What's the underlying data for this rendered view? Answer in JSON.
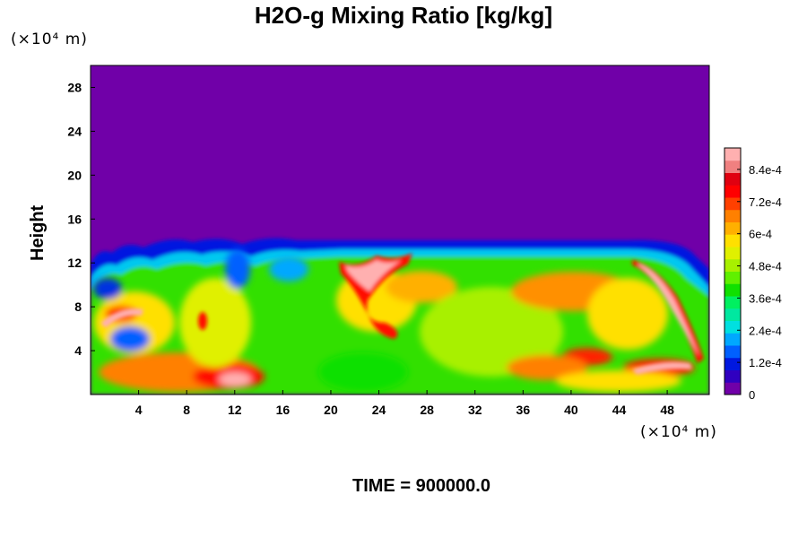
{
  "chart_data": {
    "type": "heatmap",
    "title": "H2O-g Mixing Ratio [kg/kg]",
    "ylabel": "Height",
    "y_unit": "(×10⁴ m)",
    "x_unit": "(×10⁴ m)",
    "footer": "TIME = 900000.0",
    "xlim": [
      0,
      51.5
    ],
    "ylim": [
      0,
      30
    ],
    "x_ticks": [
      4,
      8,
      12,
      16,
      20,
      24,
      28,
      32,
      36,
      40,
      44,
      48
    ],
    "y_ticks": [
      4,
      8,
      12,
      16,
      20,
      24,
      28
    ],
    "background_value": 0,
    "background_color": "#7000a8",
    "moist_layer_top": 13,
    "colorbar": {
      "min": 0,
      "max": 0.00092,
      "tick_labels": [
        "0",
        "1.2e-4",
        "2.4e-4",
        "3.6e-4",
        "4.8e-4",
        "6e-4",
        "7.2e-4",
        "8.4e-4"
      ],
      "tick_values": [
        0,
        0.00012,
        0.00024,
        0.00036,
        0.00048,
        0.0006,
        0.00072,
        0.00084
      ],
      "colors": [
        "#7000a8",
        "#3000c0",
        "#0018e0",
        "#0060ff",
        "#00a8ff",
        "#00e0e0",
        "#00e8a0",
        "#00f060",
        "#10e000",
        "#60f000",
        "#a8f000",
        "#e0f000",
        "#ffe000",
        "#ffb000",
        "#ff8000",
        "#ff4000",
        "#ff0000",
        "#e00010",
        "#f08080",
        "#ffb0b0"
      ]
    }
  }
}
